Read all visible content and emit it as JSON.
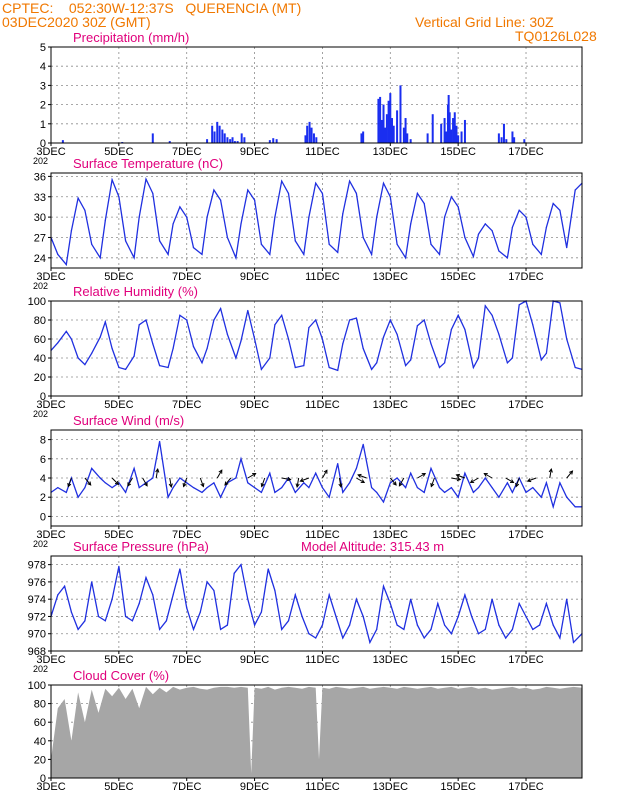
{
  "header": {
    "line1": "CPTEC:    052:30W-12:37S   QUERENCIA (MT)",
    "line2": "03DEC2020 30Z (GMT)",
    "right1": "Vertical Grid Line: 30Z",
    "right2": "TQ0126L028",
    "color": "#f07800"
  },
  "colors": {
    "title": "#e0007c",
    "line": "#2030e0",
    "bars": "#1a2ef0",
    "cloud": "#a6a6a6",
    "grid": "#8c8c8c",
    "axis": "#000000"
  },
  "x_ticks": {
    "labels": [
      "3DEC",
      "5DEC",
      "7DEC",
      "9DEC",
      "11DEC",
      "13DEC",
      "15DEC",
      "17DEC"
    ],
    "positions": [
      0,
      2,
      4,
      6,
      8,
      10,
      12,
      14
    ],
    "range": [
      0,
      15.65
    ],
    "year_fragment": "202"
  },
  "chart_data": [
    {
      "type": "bar",
      "title": "Precipitation (mm/h)",
      "ylim": [
        0,
        5
      ],
      "yticks": [
        0,
        1,
        2,
        3,
        4,
        5
      ],
      "x": [
        0.35,
        2.1,
        3.0,
        3.5,
        4.6,
        4.75,
        4.82,
        4.9,
        4.97,
        5.05,
        5.12,
        5.2,
        5.28,
        5.35,
        5.42,
        5.5,
        5.62,
        5.7,
        6.45,
        6.55,
        6.65,
        7.5,
        7.55,
        7.62,
        7.68,
        7.75,
        7.82,
        9.15,
        9.2,
        9.65,
        9.7,
        9.75,
        9.8,
        9.85,
        9.9,
        9.95,
        10.0,
        10.05,
        10.1,
        10.2,
        10.3,
        10.4,
        10.45,
        10.5,
        10.6,
        11.1,
        11.25,
        11.5,
        11.6,
        11.65,
        11.7,
        11.72,
        11.75,
        11.8,
        11.85,
        11.9,
        11.95,
        12.0,
        12.1,
        12.2,
        13.2,
        13.28,
        13.35,
        13.42,
        13.6,
        13.65,
        13.95
      ],
      "values": [
        0.15,
        0.05,
        0.5,
        0.1,
        0.2,
        0.9,
        0.6,
        1.1,
        0.9,
        0.7,
        0.5,
        0.3,
        0.2,
        0.3,
        0.1,
        0.1,
        0.5,
        0.3,
        0.15,
        0.25,
        0.2,
        0.4,
        0.9,
        1.1,
        0.8,
        0.5,
        0.3,
        0.5,
        0.6,
        2.3,
        2.4,
        1.2,
        2.0,
        0.8,
        1.5,
        2.2,
        2.6,
        1.3,
        0.9,
        1.7,
        3.0,
        0.8,
        1.3,
        0.5,
        0.2,
        0.5,
        1.5,
        1.0,
        1.3,
        0.6,
        2.0,
        2.5,
        1.6,
        0.7,
        1.3,
        1.6,
        0.9,
        0.4,
        0.6,
        1.2,
        0.5,
        0.3,
        1.0,
        0.2,
        0.6,
        0.3,
        0.2
      ],
      "xlabel": "",
      "ylabel": ""
    },
    {
      "type": "line",
      "title": "Surface Temperature (nC)",
      "ylim": [
        22.5,
        36.5
      ],
      "yticks": [
        24,
        27,
        30,
        33,
        36
      ],
      "x": [
        0,
        0.2,
        0.45,
        0.6,
        0.8,
        1.0,
        1.2,
        1.45,
        1.6,
        1.8,
        2.0,
        2.2,
        2.45,
        2.6,
        2.8,
        3.0,
        3.2,
        3.45,
        3.6,
        3.8,
        4.0,
        4.2,
        4.45,
        4.6,
        4.8,
        5.0,
        5.2,
        5.45,
        5.6,
        5.8,
        6.0,
        6.2,
        6.45,
        6.6,
        6.8,
        7.0,
        7.2,
        7.45,
        7.6,
        7.8,
        8.0,
        8.2,
        8.45,
        8.6,
        8.8,
        9.0,
        9.2,
        9.45,
        9.6,
        9.8,
        10.0,
        10.2,
        10.45,
        10.6,
        10.8,
        11.0,
        11.2,
        11.45,
        11.6,
        11.8,
        12.0,
        12.2,
        12.45,
        12.6,
        12.8,
        13.0,
        13.2,
        13.45,
        13.6,
        13.8,
        14.0,
        14.2,
        14.45,
        14.6,
        14.8,
        15.0,
        15.2,
        15.45,
        15.65
      ],
      "values": [
        27.0,
        24.5,
        23.0,
        28.0,
        32.8,
        31.0,
        26.0,
        24.0,
        29.5,
        35.5,
        33.0,
        26.5,
        24.0,
        30.0,
        35.6,
        33.5,
        26.5,
        24.5,
        29.0,
        31.5,
        30.0,
        25.5,
        24.5,
        30.0,
        34.0,
        32.5,
        27.0,
        24.0,
        29.0,
        34.0,
        32.5,
        26.0,
        24.5,
        30.0,
        35.3,
        33.5,
        26.5,
        24.5,
        30.0,
        35.0,
        33.5,
        26.0,
        24.8,
        30.5,
        35.3,
        33.5,
        27.0,
        24.5,
        30.0,
        35.0,
        33.0,
        26.0,
        24.0,
        29.0,
        33.5,
        32.0,
        26.0,
        24.5,
        30.0,
        33.0,
        31.5,
        27.0,
        24.2,
        27.5,
        29.0,
        28.0,
        25.0,
        24.0,
        28.5,
        31.0,
        30.0,
        26.0,
        24.5,
        28.5,
        32.0,
        31.0,
        25.5,
        34.0,
        35.0
      ],
      "xlabel": "",
      "ylabel": ""
    },
    {
      "type": "line",
      "title": "Relative Humidity (%)",
      "ylim": [
        0,
        100
      ],
      "yticks": [
        0,
        20,
        40,
        60,
        80,
        100
      ],
      "x": [
        0,
        0.2,
        0.45,
        0.6,
        0.8,
        1.0,
        1.2,
        1.45,
        1.6,
        1.8,
        2.0,
        2.2,
        2.45,
        2.6,
        2.8,
        3.0,
        3.2,
        3.45,
        3.6,
        3.8,
        4.0,
        4.2,
        4.45,
        4.6,
        4.8,
        5.0,
        5.2,
        5.45,
        5.6,
        5.8,
        6.0,
        6.2,
        6.45,
        6.6,
        6.8,
        7.0,
        7.2,
        7.45,
        7.6,
        7.8,
        8.0,
        8.2,
        8.45,
        8.6,
        8.8,
        9.0,
        9.2,
        9.45,
        9.6,
        9.8,
        10.0,
        10.2,
        10.45,
        10.6,
        10.8,
        11.0,
        11.2,
        11.45,
        11.6,
        11.8,
        12.0,
        12.2,
        12.45,
        12.6,
        12.8,
        13.0,
        13.2,
        13.45,
        13.6,
        13.8,
        14.0,
        14.2,
        14.45,
        14.6,
        14.8,
        15.0,
        15.2,
        15.45,
        15.65
      ],
      "values": [
        48,
        56,
        68,
        60,
        40,
        33,
        45,
        62,
        78,
        50,
        30,
        28,
        42,
        75,
        80,
        55,
        32,
        30,
        50,
        85,
        80,
        52,
        35,
        50,
        80,
        92,
        65,
        40,
        58,
        90,
        60,
        28,
        40,
        75,
        85,
        60,
        30,
        32,
        72,
        80,
        60,
        30,
        27,
        55,
        80,
        82,
        50,
        28,
        35,
        62,
        80,
        65,
        32,
        38,
        74,
        80,
        55,
        30,
        35,
        70,
        85,
        70,
        30,
        40,
        95,
        85,
        65,
        35,
        40,
        96,
        100,
        75,
        38,
        45,
        100,
        98,
        60,
        30,
        28
      ],
      "xlabel": "",
      "ylabel": ""
    },
    {
      "type": "line",
      "title": "Surface Wind (m/s)",
      "ylim": [
        -1,
        9
      ],
      "yticks": [
        0,
        2,
        4,
        6,
        8
      ],
      "x": [
        0,
        0.2,
        0.45,
        0.6,
        0.8,
        1.0,
        1.2,
        1.45,
        1.6,
        1.8,
        2.0,
        2.2,
        2.45,
        2.6,
        2.8,
        3.0,
        3.2,
        3.45,
        3.6,
        3.8,
        4.0,
        4.2,
        4.45,
        4.6,
        4.8,
        5.0,
        5.2,
        5.45,
        5.6,
        5.8,
        6.0,
        6.2,
        6.45,
        6.6,
        6.8,
        7.0,
        7.2,
        7.45,
        7.6,
        7.8,
        8.0,
        8.2,
        8.45,
        8.6,
        8.8,
        9.0,
        9.2,
        9.45,
        9.6,
        9.8,
        10.0,
        10.2,
        10.45,
        10.6,
        10.8,
        11.0,
        11.2,
        11.45,
        11.6,
        11.8,
        12.0,
        12.2,
        12.45,
        12.6,
        12.8,
        13.0,
        13.2,
        13.45,
        13.6,
        13.8,
        14.0,
        14.2,
        14.45,
        14.6,
        14.8,
        15.0,
        15.2,
        15.45,
        15.65
      ],
      "values": [
        2.5,
        3.0,
        2.5,
        4.0,
        2.0,
        3.0,
        5.0,
        4.0,
        3.5,
        3.0,
        3.5,
        2.5,
        5.0,
        3.0,
        3.5,
        4.0,
        7.8,
        2.0,
        3.0,
        4.0,
        3.5,
        3.0,
        2.5,
        3.0,
        3.5,
        2.0,
        3.5,
        4.0,
        6.0,
        3.5,
        3.0,
        2.5,
        4.5,
        2.5,
        3.0,
        4.0,
        2.5,
        3.5,
        3.0,
        4.5,
        3.0,
        2.0,
        5.5,
        2.5,
        3.5,
        5.0,
        7.5,
        3.0,
        2.5,
        1.5,
        3.5,
        4.0,
        3.0,
        4.5,
        3.0,
        2.5,
        5.0,
        3.0,
        2.5,
        3.0,
        2.0,
        4.5,
        2.5,
        3.0,
        4.0,
        3.0,
        2.0,
        3.5,
        2.5,
        4.0,
        2.5,
        3.0,
        2.0,
        3.5,
        1.0,
        3.5,
        2.0,
        1.0,
        1.0
      ],
      "arrows": [
        {
          "x": 0.6,
          "dir": 200
        },
        {
          "x": 1.0,
          "dir": 140
        },
        {
          "x": 1.8,
          "dir": 135
        },
        {
          "x": 2.4,
          "dir": 210
        },
        {
          "x": 2.7,
          "dir": 150
        },
        {
          "x": 3.1,
          "dir": 10
        },
        {
          "x": 3.5,
          "dir": 170
        },
        {
          "x": 4.0,
          "dir": 200
        },
        {
          "x": 4.4,
          "dir": 160
        },
        {
          "x": 4.9,
          "dir": 30
        },
        {
          "x": 5.3,
          "dir": 220
        },
        {
          "x": 5.8,
          "dir": 60
        },
        {
          "x": 6.3,
          "dir": 200
        },
        {
          "x": 6.8,
          "dir": 100
        },
        {
          "x": 7.3,
          "dir": 190
        },
        {
          "x": 7.6,
          "dir": 250
        },
        {
          "x": 8.0,
          "dir": 30
        },
        {
          "x": 8.5,
          "dir": 170
        },
        {
          "x": 9.0,
          "dir": 120
        },
        {
          "x": 9.3,
          "dir": 290
        },
        {
          "x": 10.0,
          "dir": 140
        },
        {
          "x": 10.4,
          "dir": 210
        },
        {
          "x": 10.8,
          "dir": 60
        },
        {
          "x": 11.3,
          "dir": 200
        },
        {
          "x": 11.8,
          "dir": 100
        },
        {
          "x": 12.2,
          "dir": 290
        },
        {
          "x": 12.6,
          "dir": 240
        },
        {
          "x": 13.0,
          "dir": 300
        },
        {
          "x": 13.4,
          "dir": 120
        },
        {
          "x": 13.8,
          "dir": 200
        },
        {
          "x": 14.3,
          "dir": 250
        },
        {
          "x": 14.7,
          "dir": 10
        },
        {
          "x": 15.2,
          "dir": 40
        }
      ],
      "xlabel": "",
      "ylabel": ""
    },
    {
      "type": "line",
      "title": "Surface Pressure (hPa)",
      "annotation": "Model Altitude: 315.43 m",
      "ylim": [
        968,
        979
      ],
      "yticks": [
        968,
        970,
        972,
        974,
        976,
        978
      ],
      "x": [
        0,
        0.2,
        0.4,
        0.6,
        0.8,
        1.0,
        1.2,
        1.4,
        1.6,
        1.8,
        2.0,
        2.2,
        2.4,
        2.6,
        2.8,
        3.0,
        3.2,
        3.4,
        3.6,
        3.8,
        4.0,
        4.2,
        4.4,
        4.6,
        4.8,
        5.0,
        5.2,
        5.4,
        5.6,
        5.8,
        6.0,
        6.2,
        6.4,
        6.6,
        6.8,
        7.0,
        7.2,
        7.4,
        7.6,
        7.8,
        8.0,
        8.2,
        8.4,
        8.6,
        8.8,
        9.0,
        9.2,
        9.4,
        9.6,
        9.8,
        10.0,
        10.2,
        10.4,
        10.6,
        10.8,
        11.0,
        11.2,
        11.4,
        11.6,
        11.8,
        12.0,
        12.2,
        12.4,
        12.6,
        12.8,
        13.0,
        13.2,
        13.4,
        13.6,
        13.8,
        14.0,
        14.2,
        14.4,
        14.6,
        14.8,
        15.0,
        15.2,
        15.4,
        15.65
      ],
      "values": [
        972,
        974.5,
        975.5,
        972.5,
        970.5,
        971.5,
        976,
        972,
        971.5,
        974,
        977.8,
        972,
        971.5,
        973.5,
        976.5,
        974.5,
        970.5,
        971.5,
        974.5,
        977.5,
        973,
        970.5,
        972.5,
        976,
        975,
        970.5,
        971,
        977,
        978,
        974,
        971,
        972.5,
        977.5,
        975,
        970.5,
        971.5,
        974.5,
        972,
        970,
        969.5,
        971,
        974.5,
        972,
        969.5,
        971,
        974,
        972,
        969,
        970.5,
        975.5,
        973.5,
        971,
        970.5,
        974,
        971,
        969.5,
        970.5,
        973.5,
        971,
        970,
        972,
        974.5,
        972,
        970,
        970.5,
        974,
        971,
        969.5,
        970.5,
        973.5,
        972,
        970.5,
        971,
        973.5,
        971,
        969.5,
        974,
        969,
        970
      ],
      "xlabel": "",
      "ylabel": ""
    },
    {
      "type": "area",
      "title": "Cloud Cover (%)",
      "ylim": [
        0,
        100
      ],
      "yticks": [
        0,
        20,
        40,
        60,
        80,
        100
      ],
      "x": [
        0,
        0.2,
        0.4,
        0.6,
        0.8,
        1.0,
        1.2,
        1.4,
        1.6,
        1.8,
        2.0,
        2.2,
        2.4,
        2.6,
        2.8,
        3.0,
        3.2,
        3.4,
        3.6,
        3.8,
        4.0,
        4.2,
        4.4,
        4.6,
        4.8,
        5.0,
        5.2,
        5.4,
        5.6,
        5.8,
        5.9,
        6.0,
        6.2,
        6.4,
        6.6,
        6.8,
        7.0,
        7.2,
        7.4,
        7.6,
        7.8,
        7.9,
        8.0,
        8.2,
        8.4,
        8.6,
        8.8,
        9.0,
        9.2,
        9.4,
        9.6,
        9.8,
        10.0,
        10.2,
        10.4,
        10.6,
        10.8,
        11.0,
        11.2,
        11.4,
        11.6,
        11.8,
        12.0,
        12.2,
        12.4,
        12.6,
        12.8,
        13.0,
        13.2,
        13.4,
        13.6,
        13.8,
        14.0,
        14.2,
        14.4,
        14.6,
        14.8,
        15.0,
        15.2,
        15.4,
        15.65
      ],
      "values": [
        20,
        75,
        85,
        40,
        92,
        60,
        95,
        70,
        96,
        88,
        97,
        85,
        96,
        75,
        98,
        90,
        97,
        92,
        98,
        95,
        97,
        98,
        96,
        95,
        97,
        98,
        98,
        97,
        98,
        97,
        5,
        97,
        96,
        98,
        95,
        97,
        98,
        97,
        96,
        98,
        97,
        20,
        97,
        96,
        98,
        97,
        96,
        97,
        98,
        96,
        97,
        98,
        97,
        96,
        98,
        97,
        96,
        97,
        98,
        96,
        97,
        98,
        96,
        97,
        98,
        96,
        97,
        95,
        96,
        97,
        98,
        96,
        97,
        95,
        96,
        98,
        97,
        96,
        97,
        98,
        97
      ],
      "xlabel": "",
      "ylabel": ""
    }
  ]
}
